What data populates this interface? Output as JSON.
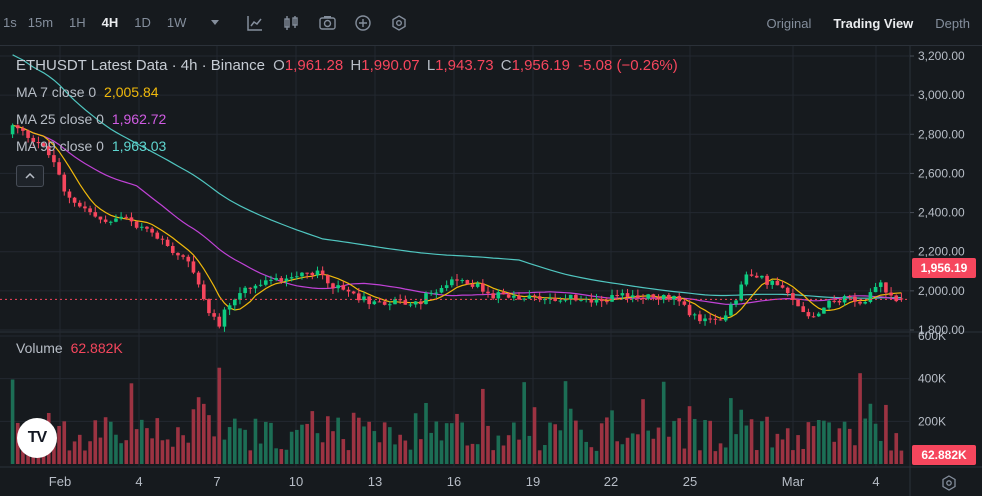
{
  "toolbar": {
    "timeframes": [
      {
        "label": "1s"
      },
      {
        "label": "15m"
      },
      {
        "label": "1H"
      },
      {
        "label": "4H"
      },
      {
        "label": "1D"
      },
      {
        "label": "1W"
      }
    ],
    "active_timeframe": "4H",
    "tool_icons": [
      "chevron-down-icon",
      "indicator-icon",
      "candle-type-icon",
      "camera-icon",
      "plus-circle-icon",
      "settings-hex-icon"
    ]
  },
  "views": {
    "original": "Original",
    "trading_view": "Trading View",
    "depth": "Depth",
    "active": "Trading View"
  },
  "legend": {
    "title": "ETHUSDT Latest Data · 4h · Binance",
    "o_label": "O",
    "o": "1,961.28",
    "h_label": "H",
    "h": "1,990.07",
    "l_label": "L",
    "l": "1,943.73",
    "c_label": "C",
    "c": "1,956.19",
    "change": "-5.08 (−0.26%)",
    "ma7_label": "MA 7 close 0",
    "ma7_value": "2,005.84",
    "ma25_label": "MA 25 close 0",
    "ma25_value": "1,962.72",
    "ma99_label": "MA 99 close 0",
    "ma99_value": "1,963.03",
    "volume_label": "Volume",
    "volume_value": "62.882K",
    "logo_text": "TV"
  },
  "colors": {
    "up": "#0ecb81",
    "down": "#f6465d",
    "up_vol": "#1c6e55",
    "down_vol": "#9c3342",
    "ma7": "#f0b90b",
    "ma25": "#c042d6",
    "ma99": "#50c6c0",
    "bg": "#161a1e",
    "grid": "#232830"
  },
  "price_axis": {
    "ticks": [
      "3,200.00",
      "3,000.00",
      "2,800.00",
      "2,600.00",
      "2,400.00",
      "2,200.00",
      "2,000.00",
      "1,800.00"
    ],
    "current": "1,956.19"
  },
  "volume_axis": {
    "ticks": [
      "600K",
      "400K",
      "200K"
    ],
    "current": "62.882K"
  },
  "time_axis": {
    "ticks": [
      "Feb",
      "4",
      "7",
      "10",
      "13",
      "16",
      "19",
      "22",
      "25",
      "Mar",
      "4"
    ]
  },
  "chart_data": {
    "type": "candlestick",
    "symbol": "ETHUSDT",
    "interval": "4h",
    "ylim": [
      1700,
      3250
    ],
    "volume_ylim": [
      0,
      650000
    ],
    "path_points": [
      [
        0,
        2840
      ],
      [
        5,
        2760
      ],
      [
        8,
        2660
      ],
      [
        10,
        2500
      ],
      [
        14,
        2420
      ],
      [
        18,
        2340
      ],
      [
        21,
        2380
      ],
      [
        24,
        2330
      ],
      [
        27,
        2300
      ],
      [
        30,
        2230
      ],
      [
        33,
        2180
      ],
      [
        35,
        2090
      ],
      [
        37,
        1950
      ],
      [
        39,
        1860
      ],
      [
        40,
        1820
      ],
      [
        41,
        1900
      ],
      [
        43,
        1960
      ],
      [
        45,
        2000
      ],
      [
        48,
        2030
      ],
      [
        52,
        2060
      ],
      [
        56,
        2100
      ],
      [
        60,
        2080
      ],
      [
        63,
        2010
      ],
      [
        66,
        1980
      ],
      [
        70,
        1940
      ],
      [
        74,
        1950
      ],
      [
        78,
        1930
      ],
      [
        82,
        2010
      ],
      [
        86,
        2050
      ],
      [
        89,
        2040
      ],
      [
        92,
        1980
      ],
      [
        96,
        1970
      ],
      [
        100,
        1980
      ],
      [
        104,
        1960
      ],
      [
        108,
        1970
      ],
      [
        112,
        1950
      ],
      [
        116,
        1960
      ],
      [
        120,
        1980
      ],
      [
        124,
        1970
      ],
      [
        128,
        1960
      ],
      [
        131,
        1890
      ],
      [
        134,
        1840
      ],
      [
        137,
        1850
      ],
      [
        140,
        1970
      ],
      [
        142,
        2080
      ],
      [
        145,
        2060
      ],
      [
        148,
        2030
      ],
      [
        152,
        1920
      ],
      [
        155,
        1870
      ],
      [
        158,
        1950
      ],
      [
        162,
        1960
      ],
      [
        165,
        1950
      ],
      [
        168,
        2040
      ],
      [
        170,
        1970
      ],
      [
        172,
        1956
      ]
    ],
    "candle_count": 173,
    "start_open": 2800,
    "last_candle": {
      "open": 1961.28,
      "high": 1990.07,
      "low": 1943.73,
      "close": 1956.19
    },
    "ma7_last": 2005.84,
    "ma25_last": 1962.72,
    "ma99_last": 1963.03,
    "volume_last": 62882
  }
}
